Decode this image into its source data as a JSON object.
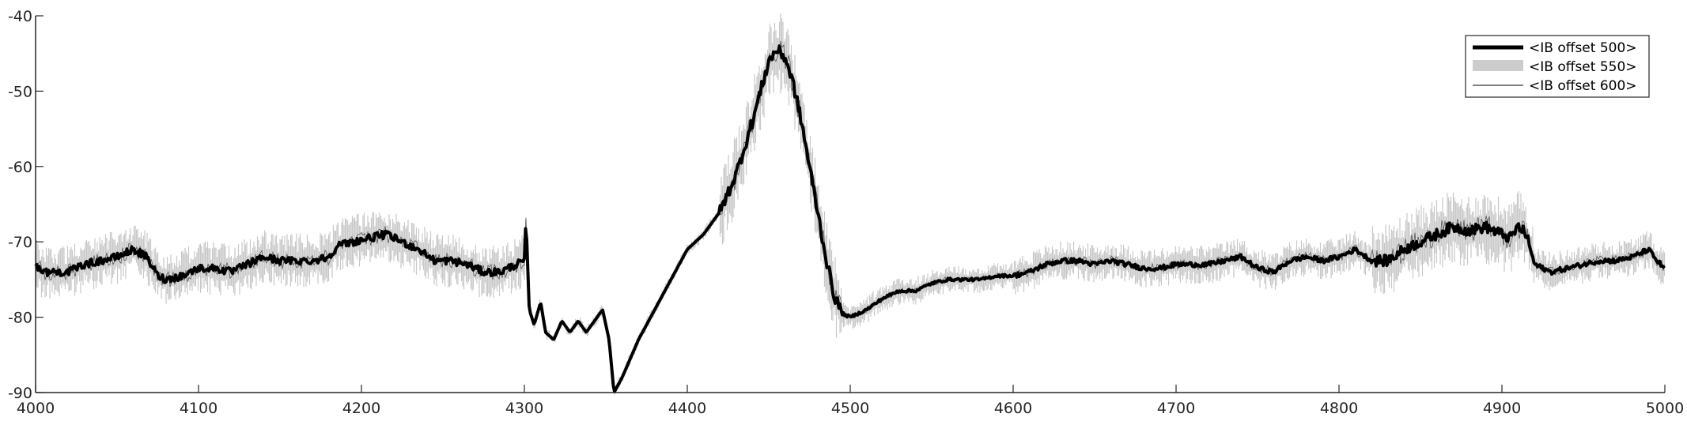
{
  "chart_data": {
    "type": "line",
    "title": "",
    "xlabel": "",
    "ylabel": "",
    "xlim": [
      4000,
      5000
    ],
    "ylim": [
      -90,
      -40
    ],
    "xticks": [
      4000,
      4100,
      4200,
      4300,
      4400,
      4500,
      4600,
      4700,
      4800,
      4900,
      5000
    ],
    "yticks": [
      -40,
      -50,
      -60,
      -70,
      -80,
      -90
    ],
    "xtick_labels": [
      "4000",
      "4100",
      "4200",
      "4300",
      "4400",
      "4500",
      "4600",
      "4700",
      "4800",
      "4900",
      "5000"
    ],
    "ytick_labels": [
      "-40",
      "-50",
      "-60",
      "-70",
      "-80",
      "-90"
    ],
    "grid": false,
    "legend_position": "top-right",
    "legend": [
      "<IB offset 500>",
      "<IB offset 550>",
      "<IB offset 600>"
    ],
    "series": [
      {
        "name": "<IB offset 500>",
        "color": "#000000",
        "style": "thick-black",
        "x": [
          4000,
          4005,
          4010,
          4020,
          4030,
          4040,
          4050,
          4060,
          4068,
          4075,
          4080,
          4090,
          4100,
          4110,
          4120,
          4130,
          4140,
          4150,
          4160,
          4170,
          4180,
          4185,
          4195,
          4205,
          4215,
          4225,
          4235,
          4245,
          4255,
          4265,
          4275,
          4285,
          4295,
          4300,
          4301,
          4303,
          4306,
          4310,
          4313,
          4318,
          4323,
          4328,
          4333,
          4338,
          4343,
          4348,
          4352,
          4355,
          4360,
          4370,
          4380,
          4390,
          4400,
          4410,
          4420,
          4430,
          4440,
          4445,
          4450,
          4455,
          4460,
          4465,
          4470,
          4475,
          4480,
          4485,
          4490,
          4495,
          4500,
          4510,
          4520,
          4530,
          4540,
          4550,
          4560,
          4570,
          4580,
          4590,
          4600,
          4610,
          4620,
          4630,
          4640,
          4650,
          4660,
          4670,
          4680,
          4690,
          4700,
          4710,
          4720,
          4730,
          4740,
          4750,
          4760,
          4770,
          4780,
          4790,
          4800,
          4810,
          4820,
          4830,
          4840,
          4850,
          4860,
          4870,
          4880,
          4890,
          4900,
          4905,
          4910,
          4915,
          4920,
          4930,
          4940,
          4950,
          4960,
          4970,
          4980,
          4985,
          4990,
          4995,
          5000
        ],
        "y": [
          -73,
          -74,
          -74,
          -74,
          -73,
          -72.5,
          -72,
          -71,
          -72,
          -74.5,
          -75,
          -74.5,
          -73.5,
          -73.5,
          -74,
          -73,
          -72,
          -72.5,
          -72.5,
          -72.5,
          -72,
          -70.5,
          -70,
          -69.5,
          -69,
          -70,
          -71,
          -72.5,
          -72.5,
          -73,
          -74,
          -74,
          -73,
          -72.5,
          -67,
          -79,
          -81,
          -78,
          -82,
          -83,
          -80.5,
          -82,
          -80.5,
          -82,
          -80.5,
          -79,
          -83,
          -90,
          -88,
          -83,
          -79,
          -75,
          -71,
          -69,
          -66,
          -61,
          -54,
          -50,
          -46,
          -44.5,
          -45.5,
          -49,
          -54,
          -60,
          -66,
          -72,
          -77,
          -79.5,
          -80,
          -79,
          -77.5,
          -76.5,
          -76.5,
          -75.5,
          -75,
          -75,
          -75,
          -74.5,
          -74.5,
          -74,
          -73,
          -72.5,
          -72.5,
          -73,
          -72.5,
          -73,
          -73.5,
          -73.5,
          -73,
          -73,
          -73,
          -72.5,
          -72,
          -73.5,
          -74,
          -72.5,
          -72,
          -72.5,
          -72,
          -71,
          -72.5,
          -72.5,
          -71,
          -70,
          -69,
          -68,
          -68.5,
          -68,
          -69,
          -69.5,
          -68,
          -69,
          -73,
          -74,
          -73.5,
          -73,
          -72.5,
          -72.5,
          -72,
          -71.5,
          -71,
          -72.5,
          -73.5
        ]
      },
      {
        "name": "<IB offset 550>",
        "color": "#c8c8c8",
        "style": "gray-band",
        "x": [
          4000,
          4050,
          4100,
          4150,
          4200,
          4250,
          4300,
          4400,
          4450,
          4500,
          4550,
          4600,
          4650,
          4700,
          4750,
          4800,
          4850,
          4900,
          4950,
          5000
        ],
        "y": [
          -74,
          -72.5,
          -74,
          -72.5,
          -70,
          -73,
          -73,
          -71,
          -45,
          -80,
          -76.5,
          -75,
          -73,
          -73,
          -72.5,
          -72,
          -69,
          -69.5,
          -72.5,
          -73.5
        ]
      },
      {
        "name": "<IB offset 600>",
        "color": "#555555",
        "style": "thin-dark",
        "x": [
          4000,
          4050,
          4100,
          4150,
          4200,
          4250,
          4300,
          4400,
          4450,
          4500,
          4550,
          4600,
          4650,
          4700,
          4750,
          4800,
          4850,
          4900,
          4950,
          5000
        ],
        "y": [
          -73.5,
          -72,
          -73.5,
          -72.5,
          -69.5,
          -72.5,
          -72.5,
          -71,
          -44.5,
          -80,
          -76.5,
          -75,
          -72.5,
          -73,
          -72,
          -71.5,
          -68.5,
          -69,
          -72.5,
          -73.5
        ]
      }
    ]
  }
}
